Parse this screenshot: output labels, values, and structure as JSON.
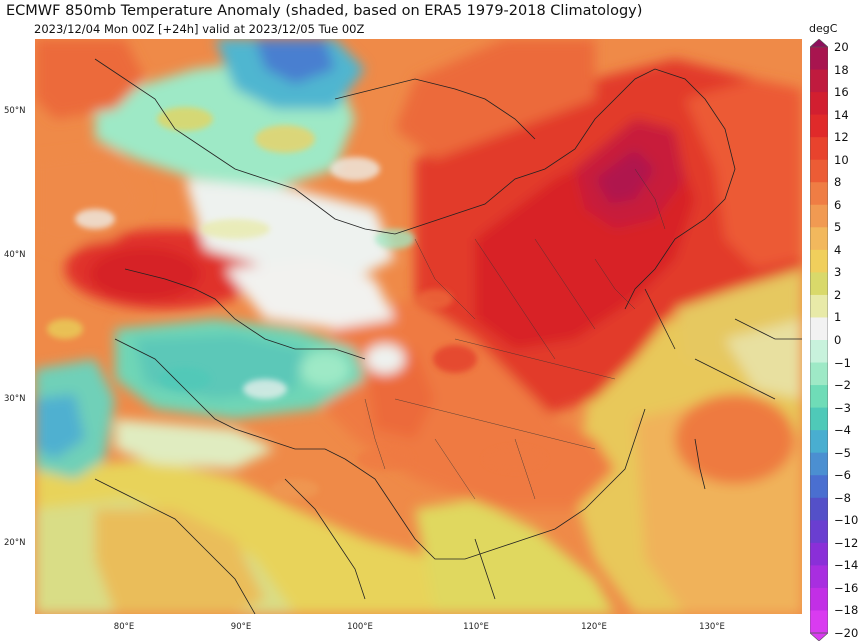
{
  "header": {
    "title": "ECMWF 850mb Temperature Anomaly (shaded, based on ERA5 1979-2018 Climatology)",
    "subtitle": "2023/12/04 Mon 00Z [+24h] valid at 2023/12/05 Tue 00Z"
  },
  "axes": {
    "lat_labels": [
      "50°N",
      "40°N",
      "30°N",
      "20°N"
    ],
    "lon_labels": [
      "80°E",
      "90°E",
      "100°E",
      "110°E",
      "120°E",
      "130°E"
    ]
  },
  "colorbar": {
    "unit": "degC",
    "levels": [
      "20",
      "18",
      "16",
      "14",
      "12",
      "10",
      "8",
      "6",
      "5",
      "4",
      "3",
      "2",
      "1",
      "0",
      "−1",
      "−2",
      "−3",
      "−4",
      "−5",
      "−6",
      "−8",
      "−10",
      "−12",
      "−14",
      "−16",
      "−18",
      "−20"
    ],
    "colors": [
      "#8e0f5c",
      "#a8154f",
      "#c01b3e",
      "#d21f30",
      "#e02a2a",
      "#e8432d",
      "#ec5c35",
      "#ef7d44",
      "#f19a52",
      "#f2b85d",
      "#f0cf5c",
      "#d9d96a",
      "#e8eaa8",
      "#f2f2f2",
      "#c8f2dc",
      "#9ee9c6",
      "#6fdcb7",
      "#4fc9b8",
      "#49aed0",
      "#4b8fd1",
      "#4a6fd0",
      "#5450c8",
      "#6a3ed0",
      "#8a2fd8",
      "#a82ee0",
      "#c22fe6",
      "#d93bf0"
    ]
  },
  "map": {
    "background_color": "#ec9a52",
    "anomaly_field_unit": "degC"
  }
}
